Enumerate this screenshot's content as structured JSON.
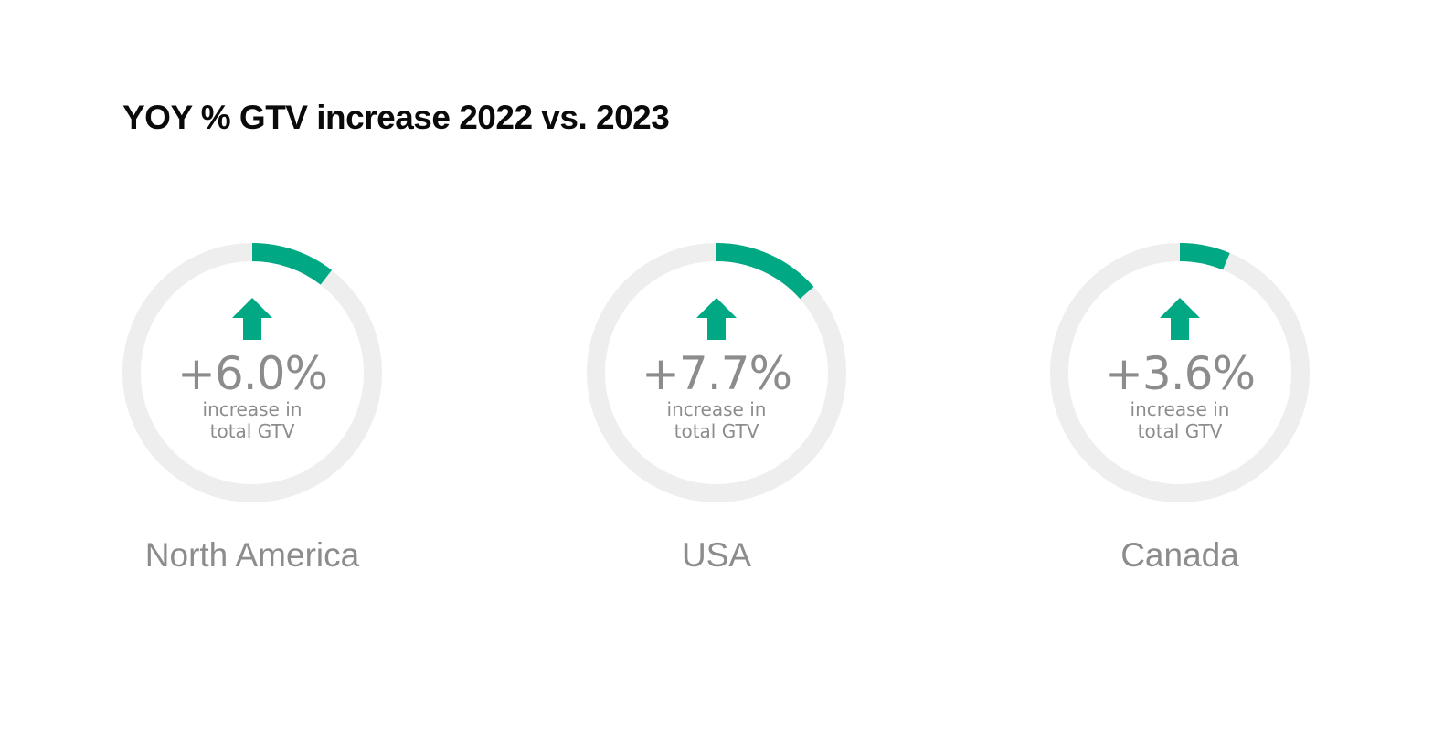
{
  "title": "YOY % GTV increase 2022 vs. 2023",
  "colors": {
    "accent": "#00A884",
    "track": "#EEEEEE",
    "text_muted": "#8C8C8C",
    "title": "#0A0A0A"
  },
  "cards": [
    {
      "region": "North America",
      "value_label": "+6.0%",
      "caption_line1": "increase in",
      "caption_line2": "total GTV",
      "icon": "arrow-up-icon"
    },
    {
      "region": "USA",
      "value_label": "+7.7%",
      "caption_line1": "increase in",
      "caption_line2": "total GTV",
      "icon": "arrow-up-icon"
    },
    {
      "region": "Canada",
      "value_label": "+3.6%",
      "caption_line1": "increase in",
      "caption_line2": "total GTV",
      "icon": "arrow-up-icon"
    }
  ],
  "chart_data": {
    "type": "pie",
    "subtype": "donut-gauge",
    "title": "YOY % GTV increase 2022 vs. 2023",
    "categories": [
      "North America",
      "USA",
      "Canada"
    ],
    "values": [
      6.0,
      7.7,
      3.6
    ],
    "unit": "%",
    "value_labels": [
      "+6.0%",
      "+7.7%",
      "+3.6%"
    ],
    "caption": "increase in total GTV",
    "legend": "none",
    "grid": false
  }
}
